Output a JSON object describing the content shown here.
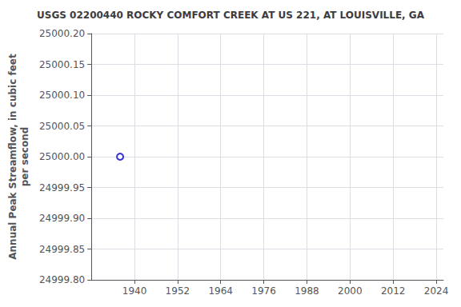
{
  "chart_data": {
    "type": "scatter",
    "title": "USGS 02200440 ROCKY COMFORT CREEK AT US 221, AT LOUISVILLE, GA",
    "ylabel": "Annual Peak Streamflow, in cubic feet\nper second",
    "x": [
      1936
    ],
    "values": [
      25000.0
    ],
    "color": "#0000cc",
    "marker": "circle",
    "xlim": [
      1928,
      2026
    ],
    "ylim": [
      24999.8,
      25000.2
    ],
    "xticks": [
      1940,
      1952,
      1964,
      1976,
      1988,
      2000,
      2012,
      2024
    ],
    "yticks": [
      {
        "value": 24999.8,
        "label": "24999.80"
      },
      {
        "value": 24999.85,
        "label": "24999.85"
      },
      {
        "value": 24999.9,
        "label": "24999.90"
      },
      {
        "value": 24999.95,
        "label": "24999.95"
      },
      {
        "value": 25000.0,
        "label": "25000.00"
      },
      {
        "value": 25000.05,
        "label": "25000.05"
      },
      {
        "value": 25000.1,
        "label": "25000.10"
      },
      {
        "value": 25000.15,
        "label": "25000.15"
      },
      {
        "value": 25000.2,
        "label": "25000.20"
      }
    ],
    "grid": true
  }
}
